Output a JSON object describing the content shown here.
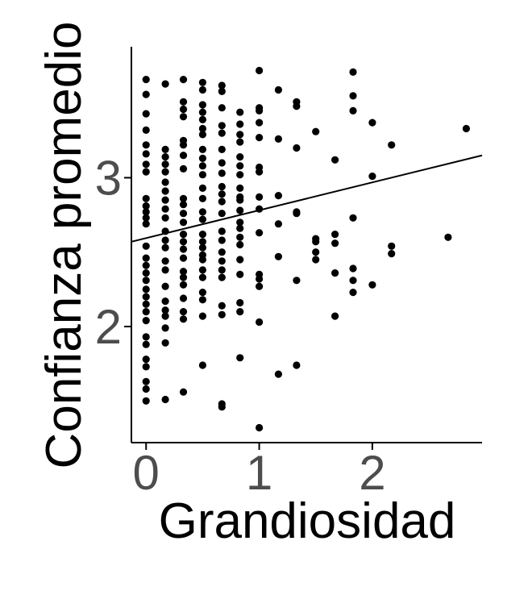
{
  "chart_data": {
    "type": "scatter",
    "title": "",
    "xlabel": "Grandiosidad",
    "ylabel": "Confianza promedio",
    "xlim": [
      -0.13,
      2.97
    ],
    "ylim": [
      1.22,
      3.88
    ],
    "x_ticks": [
      0,
      1,
      2
    ],
    "x_tick_labels": [
      "0",
      "1",
      "2"
    ],
    "y_ticks": [
      2,
      3
    ],
    "y_tick_labels": [
      "2",
      "3"
    ],
    "grid": false,
    "legend": "none",
    "colors": {
      "points": "#000000",
      "line": "#000000",
      "tick_text": "#4d4d4d",
      "axis": "#000000",
      "background": "#ffffff"
    },
    "trend_line": {
      "type": "linear",
      "x": [
        -0.13,
        2.97
      ],
      "y": [
        2.57,
        3.15
      ]
    },
    "points": [
      [
        0,
        3.66
      ],
      [
        0,
        3.56
      ],
      [
        0,
        3.43
      ],
      [
        0,
        3.32
      ],
      [
        0,
        3.22
      ],
      [
        0,
        3.16
      ],
      [
        0,
        3.09
      ],
      [
        0,
        3.04
      ],
      [
        0,
        2.86
      ],
      [
        0,
        2.81
      ],
      [
        0,
        2.77
      ],
      [
        0,
        2.73
      ],
      [
        0,
        2.69
      ],
      [
        0,
        2.54
      ],
      [
        0,
        2.46
      ],
      [
        0,
        2.41
      ],
      [
        0,
        2.36
      ],
      [
        0,
        2.31
      ],
      [
        0,
        2.25
      ],
      [
        0,
        2.2
      ],
      [
        0,
        2.15
      ],
      [
        0,
        2.1
      ],
      [
        0,
        2.04
      ],
      [
        0,
        1.93
      ],
      [
        0,
        1.88
      ],
      [
        0,
        1.78
      ],
      [
        0,
        1.73
      ],
      [
        0,
        1.63
      ],
      [
        0,
        1.58
      ],
      [
        0,
        1.5
      ],
      [
        0.17,
        3.63
      ],
      [
        0.17,
        3.19
      ],
      [
        0.17,
        3.14
      ],
      [
        0.17,
        3.09
      ],
      [
        0.17,
        3.04
      ],
      [
        0.17,
        2.97
      ],
      [
        0.17,
        2.91
      ],
      [
        0.17,
        2.85
      ],
      [
        0.17,
        2.79
      ],
      [
        0.17,
        2.73
      ],
      [
        0.17,
        2.64
      ],
      [
        0.17,
        2.58
      ],
      [
        0.17,
        2.53
      ],
      [
        0.17,
        2.44
      ],
      [
        0.17,
        2.38
      ],
      [
        0.17,
        2.27
      ],
      [
        0.17,
        2.17
      ],
      [
        0.17,
        2.11
      ],
      [
        0.17,
        2.07
      ],
      [
        0.17,
        1.99
      ],
      [
        0.17,
        1.89
      ],
      [
        0.17,
        1.51
      ],
      [
        0.33,
        3.66
      ],
      [
        0.33,
        3.51
      ],
      [
        0.33,
        3.46
      ],
      [
        0.33,
        3.41
      ],
      [
        0.33,
        3.25
      ],
      [
        0.33,
        3.22
      ],
      [
        0.33,
        3.15
      ],
      [
        0.33,
        3.06
      ],
      [
        0.33,
        2.86
      ],
      [
        0.33,
        2.82
      ],
      [
        0.33,
        2.76
      ],
      [
        0.33,
        2.7
      ],
      [
        0.33,
        2.62
      ],
      [
        0.33,
        2.57
      ],
      [
        0.33,
        2.52
      ],
      [
        0.33,
        2.46
      ],
      [
        0.33,
        2.37
      ],
      [
        0.33,
        2.33
      ],
      [
        0.33,
        2.28
      ],
      [
        0.33,
        2.19
      ],
      [
        0.33,
        2.1
      ],
      [
        0.33,
        2.05
      ],
      [
        0.33,
        1.56
      ],
      [
        0.5,
        3.64
      ],
      [
        0.5,
        3.59
      ],
      [
        0.5,
        3.49
      ],
      [
        0.5,
        3.44
      ],
      [
        0.5,
        3.39
      ],
      [
        0.5,
        3.33
      ],
      [
        0.5,
        3.29
      ],
      [
        0.5,
        3.19
      ],
      [
        0.5,
        3.13
      ],
      [
        0.5,
        3.08
      ],
      [
        0.5,
        3.02
      ],
      [
        0.5,
        2.93
      ],
      [
        0.5,
        2.86
      ],
      [
        0.5,
        2.77
      ],
      [
        0.5,
        2.72
      ],
      [
        0.5,
        2.62
      ],
      [
        0.5,
        2.57
      ],
      [
        0.5,
        2.53
      ],
      [
        0.5,
        2.48
      ],
      [
        0.5,
        2.45
      ],
      [
        0.5,
        2.38
      ],
      [
        0.5,
        2.33
      ],
      [
        0.5,
        2.23
      ],
      [
        0.5,
        2.18
      ],
      [
        0.5,
        2.07
      ],
      [
        0.5,
        1.74
      ],
      [
        0.67,
        3.62
      ],
      [
        0.67,
        3.58
      ],
      [
        0.67,
        3.47
      ],
      [
        0.67,
        3.35
      ],
      [
        0.67,
        3.3
      ],
      [
        0.67,
        3.19
      ],
      [
        0.67,
        3.1
      ],
      [
        0.67,
        3.03
      ],
      [
        0.67,
        2.94
      ],
      [
        0.67,
        2.89
      ],
      [
        0.67,
        2.84
      ],
      [
        0.67,
        2.76
      ],
      [
        0.67,
        2.64
      ],
      [
        0.67,
        2.58
      ],
      [
        0.67,
        2.5
      ],
      [
        0.67,
        2.44
      ],
      [
        0.67,
        2.38
      ],
      [
        0.67,
        2.33
      ],
      [
        0.67,
        2.14
      ],
      [
        0.67,
        2.08
      ],
      [
        0.67,
        1.48
      ],
      [
        0.67,
        1.46
      ],
      [
        0.83,
        3.44
      ],
      [
        0.83,
        3.36
      ],
      [
        0.83,
        3.29
      ],
      [
        0.83,
        3.24
      ],
      [
        0.83,
        3.14
      ],
      [
        0.83,
        3.08
      ],
      [
        0.83,
        3.02
      ],
      [
        0.83,
        2.93
      ],
      [
        0.83,
        2.87
      ],
      [
        0.83,
        2.85
      ],
      [
        0.83,
        2.78
      ],
      [
        0.83,
        2.7
      ],
      [
        0.83,
        2.66
      ],
      [
        0.83,
        2.6
      ],
      [
        0.83,
        2.55
      ],
      [
        0.83,
        2.45
      ],
      [
        0.83,
        2.35
      ],
      [
        0.83,
        2.16
      ],
      [
        0.83,
        2.1
      ],
      [
        0.83,
        1.79
      ],
      [
        1,
        3.72
      ],
      [
        1,
        3.47
      ],
      [
        1,
        3.45
      ],
      [
        1,
        3.37
      ],
      [
        1,
        3.27
      ],
      [
        1,
        3.07
      ],
      [
        1,
        3.04
      ],
      [
        1,
        2.87
      ],
      [
        1,
        2.79
      ],
      [
        1,
        2.63
      ],
      [
        1,
        2.35
      ],
      [
        1,
        2.32
      ],
      [
        1,
        2.27
      ],
      [
        1,
        2.03
      ],
      [
        1,
        1.32
      ],
      [
        1.17,
        3.59
      ],
      [
        1.17,
        3.26
      ],
      [
        1.17,
        2.88
      ],
      [
        1.17,
        2.69
      ],
      [
        1.17,
        2.47
      ],
      [
        1.17,
        1.68
      ],
      [
        1.33,
        3.51
      ],
      [
        1.33,
        3.48
      ],
      [
        1.33,
        3.2
      ],
      [
        1.33,
        2.77
      ],
      [
        1.33,
        2.76
      ],
      [
        1.33,
        2.31
      ],
      [
        1.33,
        1.74
      ],
      [
        1.5,
        3.31
      ],
      [
        1.5,
        2.59
      ],
      [
        1.5,
        2.57
      ],
      [
        1.5,
        2.5
      ],
      [
        1.5,
        2.45
      ],
      [
        1.67,
        3.12
      ],
      [
        1.67,
        2.62
      ],
      [
        1.67,
        2.56
      ],
      [
        1.67,
        2.36
      ],
      [
        1.67,
        2.07
      ],
      [
        1.83,
        3.71
      ],
      [
        1.83,
        3.55
      ],
      [
        1.83,
        3.45
      ],
      [
        1.83,
        2.73
      ],
      [
        1.83,
        2.39
      ],
      [
        1.83,
        2.31
      ],
      [
        1.83,
        2.23
      ],
      [
        2,
        3.37
      ],
      [
        2,
        3.01
      ],
      [
        2,
        2.28
      ],
      [
        2.17,
        3.22
      ],
      [
        2.17,
        2.54
      ],
      [
        2.17,
        2.49
      ],
      [
        2.67,
        2.6
      ],
      [
        2.83,
        3.33
      ]
    ]
  }
}
